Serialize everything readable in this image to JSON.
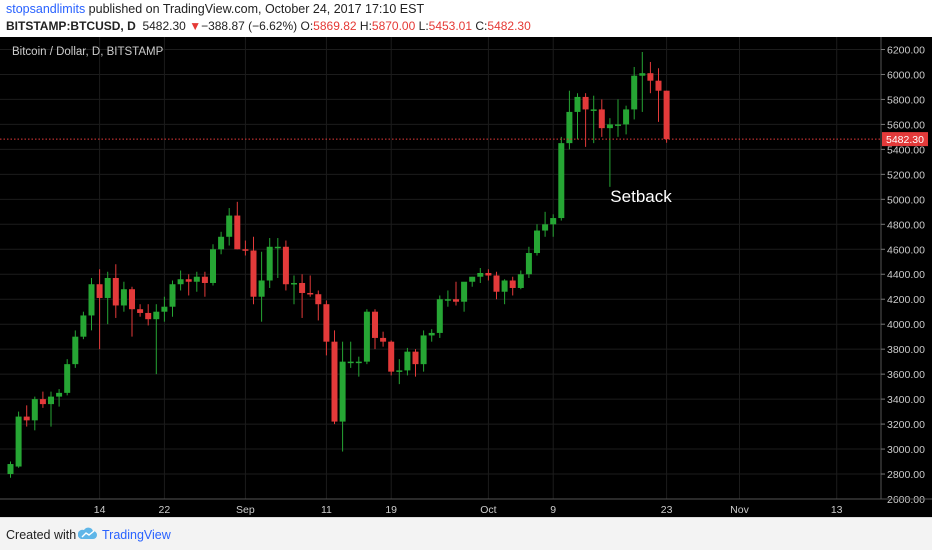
{
  "header": {
    "author": "stopsandlimits",
    "published_text": " published on TradingView.com, October 24, 2017 17:10 EST",
    "symbol": "BITSTAMP:BTCUSD, D",
    "last": "5482.30",
    "down_arrow": "▼",
    "change": "−388.87 (−6.62%)",
    "o_label": "O:",
    "o": "5869.82",
    "h_label": "H:",
    "h": "5870.00",
    "l_label": "L:",
    "l": "5453.01",
    "c_label": "C:",
    "c": "5482.30"
  },
  "footer": {
    "created_with": "Created with",
    "brand": "TradingView"
  },
  "colors": {
    "background": "#000000",
    "up": "#26a634",
    "down": "#e33a3a",
    "price_line": "#e33a3a",
    "grid": "#1c1c1c"
  },
  "chart_data": {
    "type": "candlestick",
    "title": "Bitcoin / Dollar, D, BITSTAMP",
    "ylim": [
      2600,
      6300
    ],
    "yticks": [
      2600,
      2800,
      3000,
      3200,
      3400,
      3600,
      3800,
      4000,
      4200,
      4400,
      4600,
      4800,
      5000,
      5200,
      5400,
      5600,
      5800,
      6000,
      6200
    ],
    "ytick_labels": [
      "2600.00",
      "2800.00",
      "3000.00",
      "3200.00",
      "3400.00",
      "3600.00",
      "3800.00",
      "4000.00",
      "4200.00",
      "4400.00",
      "4600.00",
      "4800.00",
      "5000.00",
      "5200.00",
      "5400.00",
      "5600.00",
      "5800.00",
      "6000.00",
      "6200.00"
    ],
    "xticks": [
      {
        "label": "14",
        "index": 11
      },
      {
        "label": "22",
        "index": 19
      },
      {
        "label": "Sep",
        "index": 29
      },
      {
        "label": "11",
        "index": 39
      },
      {
        "label": "19",
        "index": 47
      },
      {
        "label": "Oct",
        "index": 59
      },
      {
        "label": "9",
        "index": 67
      },
      {
        "label": "23",
        "index": 81
      },
      {
        "label": "Nov",
        "index": 90
      },
      {
        "label": "13",
        "index": 102
      }
    ],
    "last_price": 5482.3,
    "last_price_label": "5482.30",
    "annotation": {
      "text": "Setback",
      "index": 78,
      "price": 4980
    },
    "candles": [
      {
        "o": 2800,
        "h": 2900,
        "l": 2770,
        "c": 2880
      },
      {
        "o": 2860,
        "h": 3300,
        "l": 2850,
        "c": 3260
      },
      {
        "o": 3260,
        "h": 3350,
        "l": 3180,
        "c": 3230
      },
      {
        "o": 3230,
        "h": 3420,
        "l": 3150,
        "c": 3400
      },
      {
        "o": 3400,
        "h": 3460,
        "l": 3330,
        "c": 3360
      },
      {
        "o": 3360,
        "h": 3460,
        "l": 3180,
        "c": 3420
      },
      {
        "o": 3420,
        "h": 3480,
        "l": 3340,
        "c": 3450
      },
      {
        "o": 3450,
        "h": 3720,
        "l": 3430,
        "c": 3680
      },
      {
        "o": 3680,
        "h": 3950,
        "l": 3650,
        "c": 3900
      },
      {
        "o": 3900,
        "h": 4100,
        "l": 3880,
        "c": 4070
      },
      {
        "o": 4070,
        "h": 4370,
        "l": 3950,
        "c": 4320
      },
      {
        "o": 4320,
        "h": 4440,
        "l": 3800,
        "c": 4210
      },
      {
        "o": 4210,
        "h": 4420,
        "l": 4000,
        "c": 4370
      },
      {
        "o": 4370,
        "h": 4480,
        "l": 4050,
        "c": 4150
      },
      {
        "o": 4150,
        "h": 4340,
        "l": 4100,
        "c": 4280
      },
      {
        "o": 4280,
        "h": 4300,
        "l": 3900,
        "c": 4120
      },
      {
        "o": 4120,
        "h": 4160,
        "l": 4060,
        "c": 4090
      },
      {
        "o": 4090,
        "h": 4160,
        "l": 3990,
        "c": 4040
      },
      {
        "o": 4040,
        "h": 4160,
        "l": 3600,
        "c": 4100
      },
      {
        "o": 4100,
        "h": 4220,
        "l": 4020,
        "c": 4140
      },
      {
        "o": 4140,
        "h": 4350,
        "l": 4060,
        "c": 4320
      },
      {
        "o": 4320,
        "h": 4430,
        "l": 4270,
        "c": 4360
      },
      {
        "o": 4360,
        "h": 4400,
        "l": 4230,
        "c": 4340
      },
      {
        "o": 4340,
        "h": 4420,
        "l": 4260,
        "c": 4380
      },
      {
        "o": 4380,
        "h": 4420,
        "l": 4220,
        "c": 4330
      },
      {
        "o": 4330,
        "h": 4640,
        "l": 4310,
        "c": 4600
      },
      {
        "o": 4600,
        "h": 4740,
        "l": 4560,
        "c": 4700
      },
      {
        "o": 4700,
        "h": 4930,
        "l": 4630,
        "c": 4870
      },
      {
        "o": 4870,
        "h": 4980,
        "l": 4600,
        "c": 4600
      },
      {
        "o": 4600,
        "h": 4670,
        "l": 4550,
        "c": 4590
      },
      {
        "o": 4590,
        "h": 4700,
        "l": 4160,
        "c": 4220
      },
      {
        "o": 4220,
        "h": 4580,
        "l": 4020,
        "c": 4350
      },
      {
        "o": 4350,
        "h": 4690,
        "l": 4290,
        "c": 4620
      },
      {
        "o": 4620,
        "h": 4690,
        "l": 4370,
        "c": 4620
      },
      {
        "o": 4620,
        "h": 4670,
        "l": 4270,
        "c": 4320
      },
      {
        "o": 4320,
        "h": 4390,
        "l": 4160,
        "c": 4330
      },
      {
        "o": 4330,
        "h": 4400,
        "l": 4050,
        "c": 4250
      },
      {
        "o": 4250,
        "h": 4390,
        "l": 4220,
        "c": 4240
      },
      {
        "o": 4240,
        "h": 4270,
        "l": 4030,
        "c": 4160
      },
      {
        "o": 4160,
        "h": 4190,
        "l": 3750,
        "c": 3860
      },
      {
        "o": 3860,
        "h": 3950,
        "l": 3200,
        "c": 3220
      },
      {
        "o": 3220,
        "h": 3860,
        "l": 2980,
        "c": 3700
      },
      {
        "o": 3700,
        "h": 3860,
        "l": 3650,
        "c": 3700
      },
      {
        "o": 3700,
        "h": 3740,
        "l": 3580,
        "c": 3700
      },
      {
        "o": 3700,
        "h": 4120,
        "l": 3680,
        "c": 4100
      },
      {
        "o": 4100,
        "h": 4120,
        "l": 3800,
        "c": 3890
      },
      {
        "o": 3890,
        "h": 3940,
        "l": 3820,
        "c": 3860
      },
      {
        "o": 3860,
        "h": 3870,
        "l": 3590,
        "c": 3620
      },
      {
        "o": 3620,
        "h": 3720,
        "l": 3520,
        "c": 3630
      },
      {
        "o": 3630,
        "h": 3810,
        "l": 3590,
        "c": 3780
      },
      {
        "o": 3780,
        "h": 3800,
        "l": 3580,
        "c": 3680
      },
      {
        "o": 3680,
        "h": 3950,
        "l": 3620,
        "c": 3910
      },
      {
        "o": 3910,
        "h": 3960,
        "l": 3860,
        "c": 3930
      },
      {
        "o": 3930,
        "h": 4230,
        "l": 3890,
        "c": 4200
      },
      {
        "o": 4200,
        "h": 4270,
        "l": 4140,
        "c": 4200
      },
      {
        "o": 4200,
        "h": 4340,
        "l": 4150,
        "c": 4180
      },
      {
        "o": 4180,
        "h": 4320,
        "l": 4100,
        "c": 4340
      },
      {
        "o": 4340,
        "h": 4380,
        "l": 4300,
        "c": 4380
      },
      {
        "o": 4380,
        "h": 4450,
        "l": 4330,
        "c": 4410
      },
      {
        "o": 4410,
        "h": 4440,
        "l": 4350,
        "c": 4390
      },
      {
        "o": 4390,
        "h": 4420,
        "l": 4200,
        "c": 4260
      },
      {
        "o": 4260,
        "h": 4360,
        "l": 4160,
        "c": 4350
      },
      {
        "o": 4350,
        "h": 4380,
        "l": 4230,
        "c": 4290
      },
      {
        "o": 4290,
        "h": 4430,
        "l": 4280,
        "c": 4400
      },
      {
        "o": 4400,
        "h": 4620,
        "l": 4370,
        "c": 4570
      },
      {
        "o": 4570,
        "h": 4800,
        "l": 4550,
        "c": 4750
      },
      {
        "o": 4750,
        "h": 4900,
        "l": 4700,
        "c": 4800
      },
      {
        "o": 4800,
        "h": 4880,
        "l": 4700,
        "c": 4850
      },
      {
        "o": 4850,
        "h": 5500,
        "l": 4830,
        "c": 5450
      },
      {
        "o": 5450,
        "h": 5870,
        "l": 5400,
        "c": 5700
      },
      {
        "o": 5700,
        "h": 5850,
        "l": 5480,
        "c": 5820
      },
      {
        "o": 5820,
        "h": 5850,
        "l": 5420,
        "c": 5720
      },
      {
        "o": 5720,
        "h": 5830,
        "l": 5450,
        "c": 5720
      },
      {
        "o": 5720,
        "h": 5800,
        "l": 5500,
        "c": 5570
      },
      {
        "o": 5570,
        "h": 5650,
        "l": 5100,
        "c": 5600
      },
      {
        "o": 5600,
        "h": 5800,
        "l": 5500,
        "c": 5600
      },
      {
        "o": 5600,
        "h": 5750,
        "l": 5520,
        "c": 5720
      },
      {
        "o": 5720,
        "h": 6060,
        "l": 5640,
        "c": 5990
      },
      {
        "o": 5990,
        "h": 6180,
        "l": 5700,
        "c": 6010
      },
      {
        "o": 6010,
        "h": 6100,
        "l": 5850,
        "c": 5950
      },
      {
        "o": 5950,
        "h": 6050,
        "l": 5620,
        "c": 5870
      },
      {
        "o": 5870,
        "h": 5870,
        "l": 5453,
        "c": 5482
      }
    ]
  }
}
